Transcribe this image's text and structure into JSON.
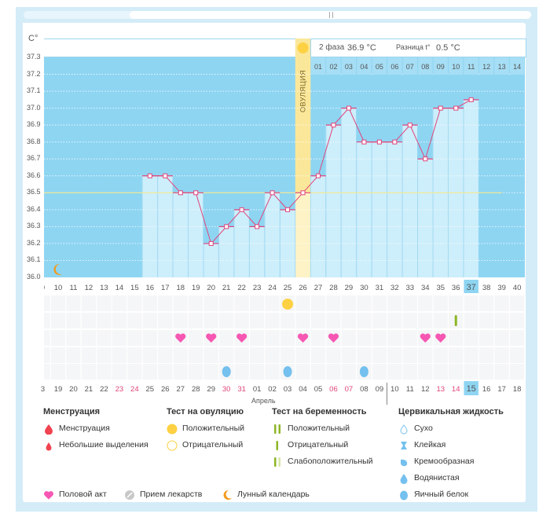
{
  "chart_data": {
    "type": "bar",
    "title": "",
    "ylabel": "C°",
    "ylim": [
      36.0,
      37.3
    ],
    "yticks": [
      "37.3",
      "37.2",
      "37.1",
      "37.0",
      "36.9",
      "36.8",
      "36.7",
      "36.6",
      "36.5",
      "36.4",
      "36.3",
      "36.2",
      "36.1",
      "36.0"
    ],
    "cycle_days": [
      "9",
      "10",
      "11",
      "12",
      "13",
      "14",
      "15",
      "16",
      "17",
      "18",
      "19",
      "20",
      "21",
      "22",
      "23",
      "24",
      "25",
      "26",
      "27",
      "28",
      "29",
      "30",
      "31",
      "32",
      "33",
      "34",
      "35",
      "36",
      "37",
      "38",
      "39",
      "40"
    ],
    "temperatures": [
      {
        "day": 16,
        "value": 36.6
      },
      {
        "day": 17,
        "value": 36.6
      },
      {
        "day": 18,
        "value": 36.5
      },
      {
        "day": 19,
        "value": 36.5
      },
      {
        "day": 20,
        "value": 36.2
      },
      {
        "day": 21,
        "value": 36.3
      },
      {
        "day": 22,
        "value": 36.4
      },
      {
        "day": 23,
        "value": 36.3
      },
      {
        "day": 24,
        "value": 36.5
      },
      {
        "day": 25,
        "value": 36.4
      },
      {
        "day": 26,
        "value": 36.5
      },
      {
        "day": 27,
        "value": 36.6
      },
      {
        "day": 28,
        "value": 36.9
      },
      {
        "day": 29,
        "value": 37.0
      },
      {
        "day": 30,
        "value": 36.8
      },
      {
        "day": 31,
        "value": 36.8
      },
      {
        "day": 32,
        "value": 36.8
      },
      {
        "day": 33,
        "value": 36.9
      },
      {
        "day": 34,
        "value": 36.7
      },
      {
        "day": 35,
        "value": 37.0
      },
      {
        "day": 36,
        "value": 37.0
      },
      {
        "day": 37,
        "value": 37.05
      }
    ],
    "coverline": 36.5,
    "coverline_end_day": 39,
    "current_cycle_day": 37,
    "ovulation_day": 26,
    "ovulation_label": "ОВУЛЯЦИЯ",
    "phase2_days": [
      "01",
      "02",
      "03",
      "04",
      "05",
      "06",
      "07",
      "08",
      "09",
      "10",
      "11",
      "12",
      "13",
      "14"
    ],
    "phase2_label": "2 фаза",
    "phase2_temp": "36.9 °C",
    "diff_label": "Разница t°",
    "diff_value": "0.5 °C",
    "grid": true
  },
  "calendar": {
    "dates": [
      {
        "d": "3",
        "red": false
      },
      {
        "d": "19",
        "red": false
      },
      {
        "d": "20",
        "red": false
      },
      {
        "d": "21",
        "red": false
      },
      {
        "d": "22",
        "red": false
      },
      {
        "d": "23",
        "red": true
      },
      {
        "d": "24",
        "red": true
      },
      {
        "d": "25",
        "red": false
      },
      {
        "d": "26",
        "red": false
      },
      {
        "d": "27",
        "red": false
      },
      {
        "d": "28",
        "red": false
      },
      {
        "d": "29",
        "red": false
      },
      {
        "d": "30",
        "red": true
      },
      {
        "d": "31",
        "red": true
      },
      {
        "d": "01",
        "red": false
      },
      {
        "d": "02",
        "red": false
      },
      {
        "d": "03",
        "red": false
      },
      {
        "d": "04",
        "red": false
      },
      {
        "d": "05",
        "red": false
      },
      {
        "d": "06",
        "red": true
      },
      {
        "d": "07",
        "red": true
      },
      {
        "d": "08",
        "red": false
      },
      {
        "d": "09",
        "red": false
      },
      {
        "d": "10",
        "red": false
      },
      {
        "d": "11",
        "red": false
      },
      {
        "d": "12",
        "red": false
      },
      {
        "d": "13",
        "red": true
      },
      {
        "d": "14",
        "red": true
      },
      {
        "d": "15",
        "red": false,
        "today": true
      },
      {
        "d": "16",
        "red": false
      },
      {
        "d": "17",
        "red": false
      },
      {
        "d": "18",
        "red": false
      }
    ],
    "month_label": "Апрель",
    "ovulation_test_positive_days": [
      25
    ],
    "pregnancy_test_negative_days": [
      36
    ],
    "intercourse_days": [
      18,
      20,
      22,
      26,
      28,
      34,
      35
    ],
    "cervical_fluid_days": [
      21,
      25,
      30
    ],
    "moon_days": [
      10
    ]
  },
  "legend": {
    "menstruation": {
      "title": "Менструация",
      "items": [
        "Менструация",
        "Небольшие выделения"
      ]
    },
    "ovulation_test": {
      "title": "Тест на овуляцию",
      "items": [
        "Положительный",
        "Отрицательный"
      ]
    },
    "pregnancy_test": {
      "title": "Тест на беременность",
      "items": [
        "Положительный",
        "Отрицательный",
        "Слабоположительный"
      ]
    },
    "cervical": {
      "title": "Цервикальная жидкость",
      "items": [
        "Сухо",
        "Клейкая",
        "Кремообразная",
        "Водянистая",
        "Яичный белок"
      ]
    },
    "other": [
      "Половой акт",
      "Прием лекарств",
      "Лунный календарь"
    ]
  },
  "colors": {
    "sky": "#8ed5f2",
    "bar": "#cdeefb",
    "line": "#e0457b",
    "coverline": "#f4e98a",
    "ovulation": "#fbe79a",
    "heart": "#f657b3",
    "sun": "#fdd143",
    "drop": "#74c0ee",
    "green": "#8db526"
  }
}
